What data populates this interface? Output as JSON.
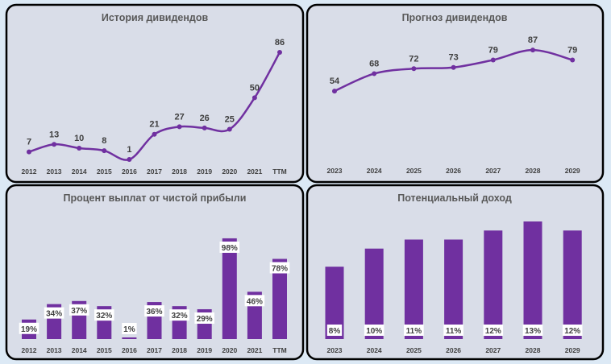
{
  "colors": {
    "series": "#7030a0",
    "panel": "#d9dde8",
    "border": "#000000",
    "background": "#dce9f5"
  },
  "chart_data": [
    {
      "type": "line",
      "title": "История дивидендов",
      "categories": [
        "2012",
        "2013",
        "2014",
        "2015",
        "2016",
        "2017",
        "2018",
        "2019",
        "2020",
        "2021",
        "TTM"
      ],
      "values": [
        7,
        13,
        10,
        8,
        1,
        21,
        27,
        26,
        25,
        50,
        86
      ],
      "smooth": true,
      "markers": true,
      "grid": false
    },
    {
      "type": "line",
      "title": "Прогноз дивидендов",
      "categories": [
        "2023",
        "2024",
        "2025",
        "2026",
        "2027",
        "2028",
        "2029"
      ],
      "values": [
        54,
        68,
        72,
        73,
        79,
        87,
        79
      ],
      "smooth": true,
      "markers": true,
      "grid": false
    },
    {
      "type": "bar",
      "title": "Процент выплат от чистой прибыли",
      "categories": [
        "2012",
        "2013",
        "2014",
        "2015",
        "2016",
        "2017",
        "2018",
        "2019",
        "2020",
        "2021",
        "TTM"
      ],
      "values": [
        19,
        34,
        37,
        32,
        1,
        36,
        32,
        29,
        98,
        46,
        78
      ],
      "labels": [
        "19%",
        "34%",
        "37%",
        "32%",
        "1%",
        "36%",
        "32%",
        "29%",
        "98%",
        "46%",
        "78%"
      ],
      "grid": false
    },
    {
      "type": "bar",
      "title": "Потенциальный доход",
      "categories": [
        "2023",
        "2024",
        "2025",
        "2026",
        "2027",
        "2028",
        "2029"
      ],
      "values": [
        8,
        10,
        11,
        11,
        12,
        13,
        12
      ],
      "labels": [
        "8%",
        "10%",
        "11%",
        "11%",
        "12%",
        "13%",
        "12%"
      ],
      "grid": false
    }
  ]
}
